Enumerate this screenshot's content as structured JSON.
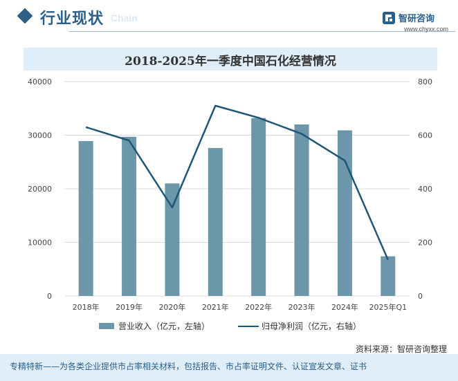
{
  "header": {
    "title": "行业现状",
    "subtitle_faint": "Chain",
    "brand_name": "智研咨询",
    "brand_url": "www.chyxx.com"
  },
  "chart_data": {
    "type": "bar+line",
    "title": "2018-2025年一季度中国石化经营情况",
    "categories": [
      "2018年",
      "2019年",
      "2020年",
      "2021年",
      "2022年",
      "2023年",
      "2024年",
      "2025年Q1"
    ],
    "series": [
      {
        "name": "营业收入（亿元，左轴）",
        "type": "bar",
        "axis": "left",
        "color": "#6c97ab",
        "values": [
          28900,
          29700,
          21000,
          27600,
          33200,
          32000,
          30900,
          7400
        ]
      },
      {
        "name": "归母净利润（亿元，右轴）",
        "type": "line",
        "axis": "right",
        "color": "#1f5575",
        "values": [
          630,
          580,
          330,
          710,
          665,
          605,
          505,
          135
        ]
      }
    ],
    "y_left": {
      "min": 0,
      "max": 40000,
      "ticks": [
        "0",
        "10000",
        "20000",
        "30000",
        "40000"
      ]
    },
    "y_right": {
      "min": 0,
      "max": 800,
      "ticks": [
        "0",
        "200",
        "400",
        "600",
        "800"
      ]
    },
    "grid": true,
    "legend_position": "bottom"
  },
  "legend": {
    "bar_label": "营业收入（亿元，左轴）",
    "line_label": "归母净利润（亿元，右轴）"
  },
  "source": "资料来源：智研咨询整理",
  "footer": "专精特新——为各类企业提供市占率相关材料，包括报告、市占率证明文件、认证宣发文章、证书"
}
